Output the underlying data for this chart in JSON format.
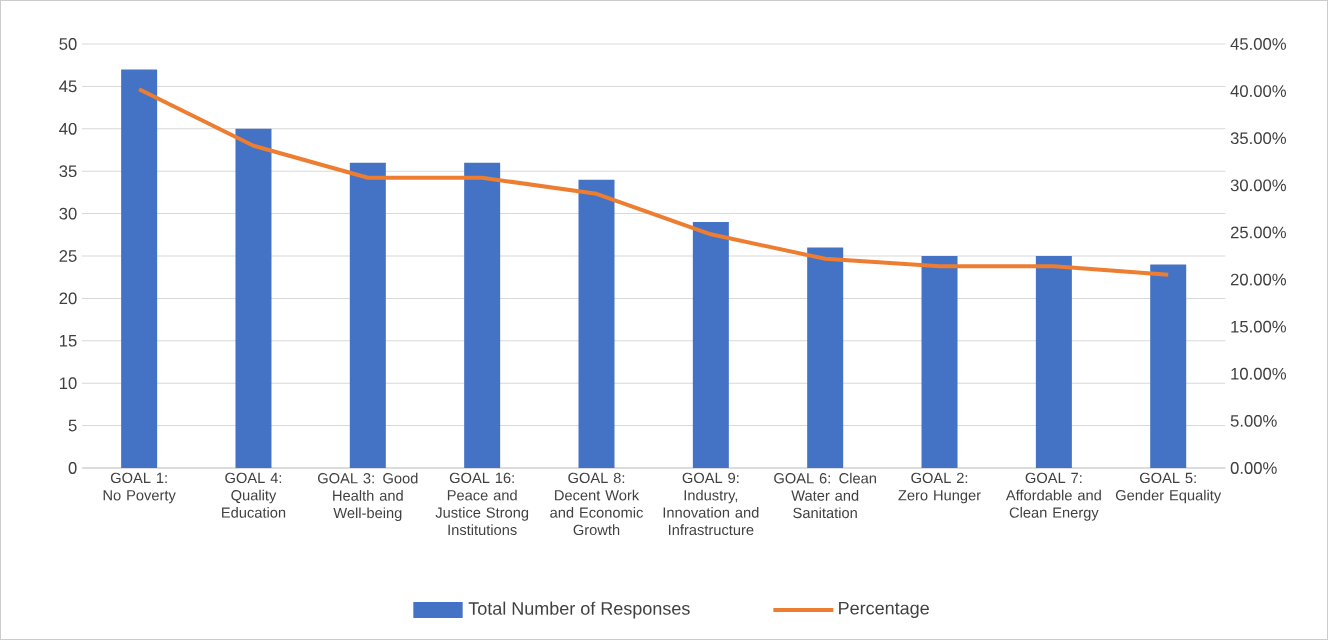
{
  "chart_data": {
    "type": "bar",
    "categories": [
      "GOAL 1: No Poverty",
      "GOAL 4: Quality Education",
      "GOAL 3: Good Health and Well-being",
      "GOAL 16: Peace and Justice Strong Institutions",
      "GOAL 8: Decent Work and Economic Growth",
      "GOAL 9: Industry, Innovation and Infrastructure",
      "GOAL 6: Clean Water and Sanitation",
      "GOAL 2: Zero Hunger",
      "GOAL 7: Affordable and Clean Energy",
      "GOAL 5: Gender Equality"
    ],
    "series": [
      {
        "name": "Total Number of Responses",
        "color": "#4472c4",
        "values": [
          47,
          40,
          36,
          36,
          34,
          29,
          26,
          25,
          25,
          24
        ]
      },
      {
        "name": "Percentage",
        "type": "line",
        "axis": "y2",
        "color": "#ed7d31",
        "values": [
          40.2,
          34.2,
          30.8,
          30.8,
          29.1,
          24.8,
          22.2,
          21.4,
          21.4,
          20.5
        ]
      }
    ],
    "ylim": [
      0,
      50
    ],
    "yticks": [
      0,
      5,
      10,
      15,
      20,
      25,
      30,
      35,
      40,
      45,
      50
    ],
    "y2lim": [
      0,
      45
    ],
    "y2ticks": [
      {
        "value": 0,
        "label": "0.00%"
      },
      {
        "value": 5,
        "label": "5.00%"
      },
      {
        "value": 10,
        "label": "10.00%"
      },
      {
        "value": 15,
        "label": "15.00%"
      },
      {
        "value": 20,
        "label": "20.00%"
      },
      {
        "value": 25,
        "label": "25.00%"
      },
      {
        "value": 30,
        "label": "30.00%"
      },
      {
        "value": 35,
        "label": "35.00%"
      },
      {
        "value": 40,
        "label": "40.00%"
      },
      {
        "value": 45,
        "label": "45.00%"
      }
    ],
    "grid": "y",
    "legend": "bottom"
  }
}
